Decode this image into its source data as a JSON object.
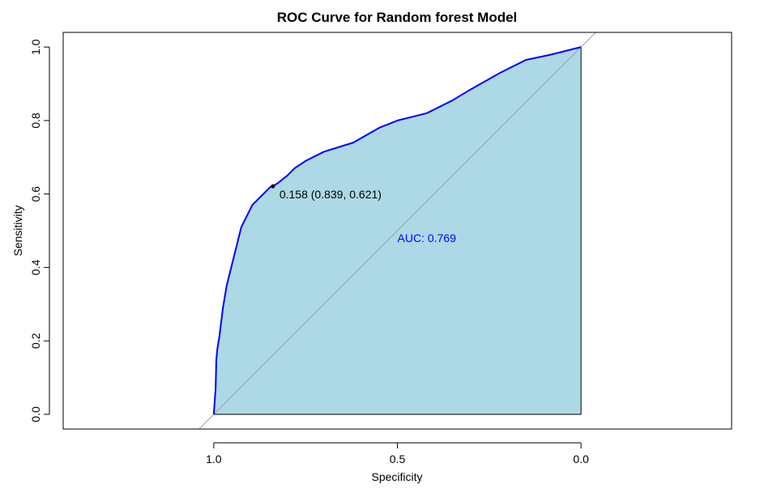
{
  "chart_data": {
    "type": "area",
    "title": "ROC Curve for Random forest Model",
    "xlabel": "Specificity",
    "ylabel": "Sensitivity",
    "x_axis_reversed": true,
    "xlim": [
      1.41,
      -0.41
    ],
    "ylim": [
      -0.04,
      1.04
    ],
    "x_ticks": [
      1.0,
      0.5,
      0.0
    ],
    "x_tick_labels": [
      "1.0",
      "0.5",
      "0.0"
    ],
    "y_ticks": [
      0.0,
      0.2,
      0.4,
      0.6,
      0.8,
      1.0
    ],
    "y_tick_labels": [
      "0.0",
      "0.2",
      "0.4",
      "0.6",
      "0.8",
      "1.0"
    ],
    "grid": false,
    "colors": {
      "curve": "#0000ff",
      "fill": "#add8e6",
      "diagonal": "#a0a0a0",
      "auc_text": "#0000ff"
    },
    "series": [
      {
        "specificity": [
          1.0,
          0.995,
          0.993,
          0.99,
          0.985,
          0.98,
          0.975,
          0.97,
          0.965,
          0.96,
          0.955,
          0.95,
          0.945,
          0.94,
          0.935,
          0.93,
          0.925,
          0.92,
          0.915,
          0.91,
          0.905,
          0.9,
          0.895,
          0.89,
          0.885,
          0.88,
          0.875,
          0.87,
          0.865,
          0.855,
          0.845,
          0.839,
          0.825,
          0.8,
          0.78,
          0.75,
          0.7,
          0.62,
          0.55,
          0.5,
          0.42,
          0.35,
          0.3,
          0.22,
          0.15,
          0.08,
          0.0
        ],
        "sensitivity": [
          0.0,
          0.07,
          0.15,
          0.18,
          0.21,
          0.25,
          0.29,
          0.32,
          0.35,
          0.37,
          0.39,
          0.41,
          0.43,
          0.45,
          0.47,
          0.49,
          0.51,
          0.52,
          0.53,
          0.54,
          0.55,
          0.56,
          0.57,
          0.575,
          0.58,
          0.585,
          0.59,
          0.595,
          0.6,
          0.61,
          0.62,
          0.621,
          0.63,
          0.65,
          0.67,
          0.69,
          0.715,
          0.74,
          0.78,
          0.8,
          0.82,
          0.855,
          0.885,
          0.93,
          0.965,
          0.98,
          1.0
        ]
      }
    ],
    "diagonal": {
      "from": [
        1.04,
        -0.04
      ],
      "to": [
        -0.04,
        1.04
      ]
    },
    "threshold_point": {
      "specificity": 0.839,
      "sensitivity": 0.621,
      "label": "0.158 (0.839, 0.621)"
    },
    "auc_label": {
      "text": "AUC: 0.769",
      "x": 0.5,
      "y": 0.48
    }
  }
}
